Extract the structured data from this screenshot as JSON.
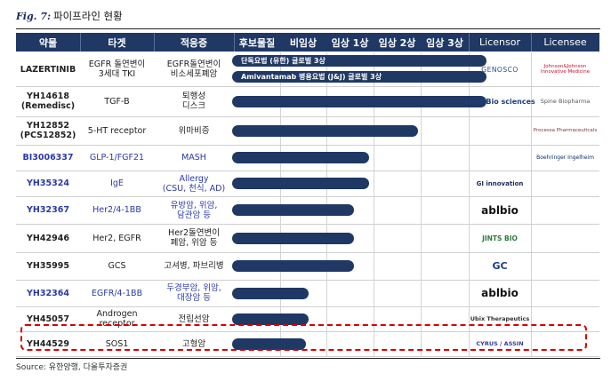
{
  "figure": {
    "number": "Fig. 7:",
    "title": "파이프라인 현황"
  },
  "headers": {
    "drug": "약물",
    "target": "타겟",
    "indication": "적응증",
    "candidate": "후보물질",
    "nonclinical": "비임상",
    "phase1": "임상 1상",
    "phase2": "임상 2상",
    "phase3": "임상 3상",
    "licensor": "Licensor",
    "licensee": "Licensee"
  },
  "rows": [
    {
      "drug": "LAZERTINIB",
      "target": "EGFR 돌연변이\n3세대 TKI",
      "indication": "EGFR돌연변이\n비소세포폐암",
      "blue": false,
      "phase_progress": 1.0,
      "bar_labels": [
        "단독요법 (유한) 글로벌 3상",
        "Amivantamab 병용요법 (J&J) 글로벌 3상"
      ],
      "licensor": "GENOSCO",
      "licensee": "Johnson&Johnson Innovative Medicine"
    },
    {
      "drug": "YH14618\n(Remedisc)",
      "target": "TGF-B",
      "indication": "퇴행성\n디스크",
      "blue": false,
      "phase_progress": 1.0,
      "licensor": "EnsolBio sciences",
      "licensee": "Spine Biopharma"
    },
    {
      "drug": "YH12852\n(PCS12852)",
      "target": "5-HT receptor",
      "indication": "위마비증",
      "blue": false,
      "phase_progress": 0.73,
      "licensor": "",
      "licensee": "Processa Pharmaceuticals"
    },
    {
      "drug": "BI3006337",
      "target": "GLP-1/FGF21",
      "indication": "MASH",
      "blue": true,
      "phase_progress": 0.54,
      "licensor": "",
      "licensee": "Boehringer Ingelheim"
    },
    {
      "drug": "YH35324",
      "target": "IgE",
      "indication": "Allergy\n(CSU, 천식, AD)",
      "blue": true,
      "phase_progress": 0.54,
      "licensor": "GI innovation",
      "licensee": ""
    },
    {
      "drug": "YH32367",
      "target": "Her2/4-1BB",
      "indication": "유방암, 위암,\n담관암 등",
      "blue": true,
      "phase_progress": 0.48,
      "licensor": "ablbio",
      "licensee": ""
    },
    {
      "drug": "YH42946",
      "target": "Her2, EGFR",
      "indication": "Her2돌연변이\n폐암, 위암 등",
      "blue": false,
      "phase_progress": 0.48,
      "licensor": "JINTS BIO",
      "licensee": ""
    },
    {
      "drug": "YH35995",
      "target": "GCS",
      "indication": "고셔병, 파브리병",
      "blue": false,
      "phase_progress": 0.48,
      "licensor": "GC",
      "licensee": ""
    },
    {
      "drug": "YH32364",
      "target": "EGFR/4-1BB",
      "indication": "두경부암, 위암,\n대장암 등",
      "blue": true,
      "phase_progress": 0.3,
      "licensor": "ablbio",
      "licensee": ""
    },
    {
      "drug": "YH45057",
      "target": "Androgen\nreceptor",
      "indication": "전립선암",
      "blue": false,
      "phase_progress": 0.3,
      "licensor": "Ubix Therapeutics",
      "licensee": ""
    },
    {
      "drug": "YH44529",
      "target": "SOS1",
      "indication": "고형암",
      "blue": false,
      "phase_progress": 0.29,
      "licensor": "CYRUS / ASSIN",
      "licensee": ""
    }
  ],
  "source": "Source: 유한양행, 다올투자증권",
  "colors": {
    "header_bg": "#1f3864",
    "bar": "#1f3864",
    "blue_text": "#2b3aa8",
    "highlight": "#d90000"
  }
}
